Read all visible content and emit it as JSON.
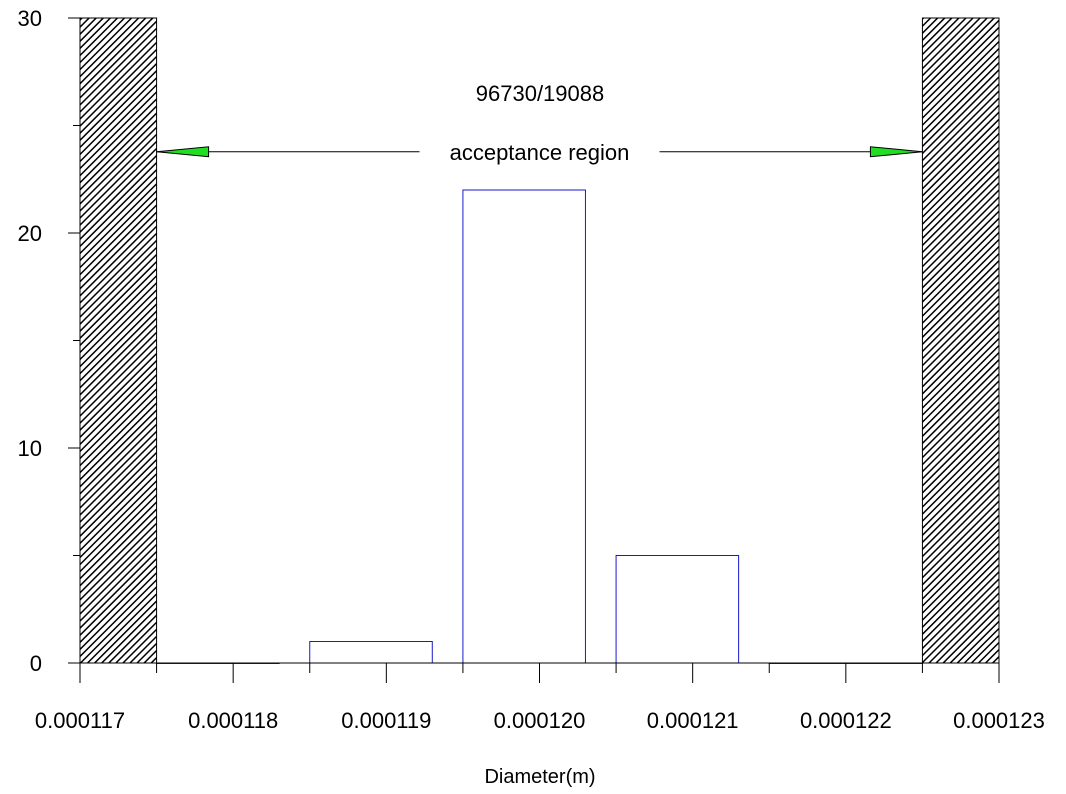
{
  "chart_data": {
    "type": "bar",
    "title": "96730/19088",
    "xlabel": "Diameter(m)",
    "ylabel": "",
    "xlim": [
      0.000117,
      0.000123
    ],
    "ylim": [
      0,
      30
    ],
    "x_ticks": [
      "0.000117",
      "0.000118",
      "0.000119",
      "0.000120",
      "0.000121",
      "0.000122",
      "0.000123"
    ],
    "y_ticks": [
      "0",
      "10",
      "20",
      "30"
    ],
    "bins": [
      {
        "x0": 0.0001175,
        "x1": 0.0001183,
        "value": 0
      },
      {
        "x0": 0.0001185,
        "x1": 0.0001193,
        "value": 1
      },
      {
        "x0": 0.0001195,
        "x1": 0.0001203,
        "value": 22
      },
      {
        "x0": 0.0001205,
        "x1": 0.0001213,
        "value": 5
      },
      {
        "x0": 0.0001215,
        "x1": 0.0001225,
        "value": 0
      }
    ],
    "rejection_regions": [
      {
        "x0": 0.000117,
        "x1": 0.0001175
      },
      {
        "x0": 0.0001225,
        "x1": 0.000123
      }
    ],
    "acceptance_region": {
      "label": "acceptance region",
      "x0": 0.0001175,
      "x1": 0.0001225,
      "y": 23.5
    },
    "colors": {
      "bar_outline": "#1a1acc",
      "arrow_fill": "#22dd22",
      "hatch": "#000000"
    },
    "grid": false
  }
}
